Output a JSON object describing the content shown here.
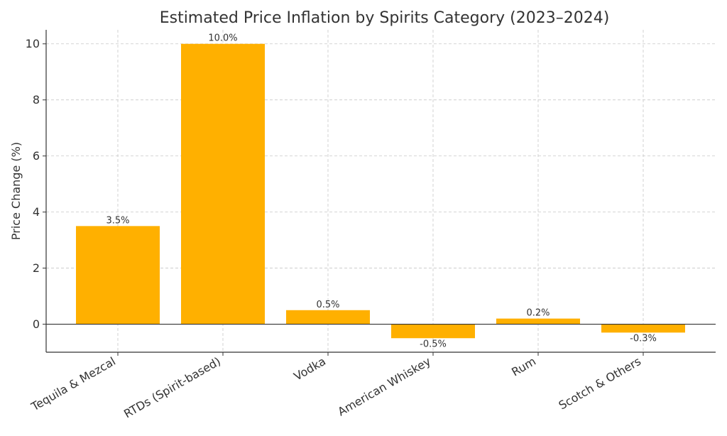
{
  "chart_data": {
    "type": "bar",
    "title": "Estimated Price Inflation by Spirits Category (2023–2024)",
    "xlabel": "",
    "ylabel": "Price Change (%)",
    "categories": [
      "Tequila & Mezcal",
      "RTDs (Spirit-based)",
      "Vodka",
      "American Whiskey",
      "Rum",
      "Scotch & Others"
    ],
    "values": [
      3.5,
      10.0,
      0.5,
      -0.5,
      0.2,
      -0.3
    ],
    "value_labels": [
      "3.5%",
      "10.0%",
      "0.5%",
      "-0.5%",
      "0.2%",
      "-0.3%"
    ],
    "yticks": [
      0,
      2,
      4,
      6,
      8,
      10
    ],
    "ylim": [
      -1.0,
      10.5
    ],
    "grid": true,
    "bar_color": "#ffb000"
  }
}
